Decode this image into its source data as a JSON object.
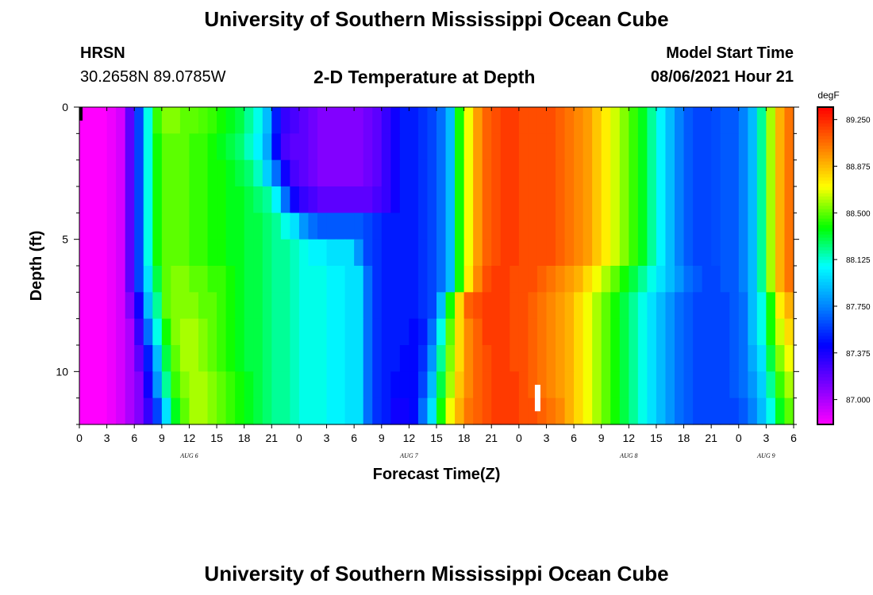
{
  "header": {
    "title": "University of Southern Mississippi Ocean Cube",
    "station_name": "HRSN",
    "station_coords": "30.2658N  89.0785W",
    "chart_title": "2-D Temperature at Depth",
    "start_label": "Model Start Time",
    "start_value": "08/06/2021 Hour 21"
  },
  "footer": {
    "title": "University of Southern Mississippi Ocean Cube"
  },
  "chart_data": {
    "type": "heatmap",
    "title": "2-D Temperature at Depth",
    "xlabel": "Forecast Time(Z)",
    "ylabel": "Depth (ft)",
    "x_ticks": [
      "0",
      "3",
      "6",
      "9",
      "12",
      "15",
      "18",
      "21",
      "0",
      "3",
      "6",
      "9",
      "12",
      "15",
      "18",
      "21",
      "0",
      "3",
      "6",
      "9",
      "12",
      "15",
      "18",
      "21",
      "0",
      "3",
      "6"
    ],
    "x_range_hours": [
      0,
      78
    ],
    "date_labels": [
      {
        "label": "AUG  6",
        "hour": 12
      },
      {
        "label": "AUG  7",
        "hour": 36
      },
      {
        "label": "AUG  8",
        "hour": 60
      },
      {
        "label": "AUG  9",
        "hour": 75
      }
    ],
    "y_range": [
      0,
      12
    ],
    "y_ticks": [
      0,
      5,
      10
    ],
    "y_minor_step": 1,
    "hours": [
      0,
      1,
      2,
      3,
      4,
      5,
      6,
      7,
      8,
      9,
      10,
      11,
      12,
      13,
      14,
      15,
      16,
      17,
      18,
      19,
      20,
      21,
      22,
      23,
      24,
      25,
      26,
      27,
      28,
      29,
      30,
      31,
      32,
      33,
      34,
      35,
      36,
      37,
      38,
      39,
      40,
      41,
      42,
      43,
      44,
      45,
      46,
      47,
      48,
      49,
      50,
      51,
      52,
      53,
      54,
      55,
      56,
      57,
      58,
      59,
      60,
      61,
      62,
      63,
      64,
      65,
      66,
      67,
      68,
      69,
      70,
      71,
      72,
      73,
      74,
      75,
      76,
      77
    ],
    "depths": [
      0,
      1,
      2,
      3,
      4,
      5,
      6,
      7,
      8,
      9,
      10,
      11
    ],
    "values": [
      [
        86.8,
        86.8,
        86.8,
        86.84,
        86.9,
        87.2,
        87.6,
        88.1,
        88.45,
        88.55,
        88.55,
        88.5,
        88.5,
        88.48,
        88.45,
        88.4,
        88.35,
        88.3,
        88.2,
        88.1,
        87.9,
        87.5,
        87.3,
        87.25,
        87.2,
        87.15,
        87.1,
        87.1,
        87.1,
        87.1,
        87.1,
        87.15,
        87.2,
        87.3,
        87.4,
        87.5,
        87.5,
        87.55,
        87.6,
        87.7,
        87.9,
        88.4,
        88.7,
        88.95,
        89.1,
        89.15,
        89.2,
        89.2,
        89.15,
        89.15,
        89.15,
        89.15,
        89.1,
        89.05,
        89.0,
        88.95,
        88.85,
        88.75,
        88.65,
        88.55,
        88.45,
        88.35,
        88.2,
        88.05,
        87.9,
        87.75,
        87.65,
        87.6,
        87.6,
        87.62,
        87.65,
        87.65,
        87.75,
        87.9,
        88.2,
        88.6,
        88.9,
        89.05
      ],
      [
        86.8,
        86.8,
        86.8,
        86.84,
        86.9,
        87.2,
        87.6,
        88.1,
        88.4,
        88.5,
        88.5,
        88.5,
        88.45,
        88.45,
        88.4,
        88.35,
        88.3,
        88.25,
        88.15,
        88.05,
        87.85,
        87.45,
        87.25,
        87.2,
        87.2,
        87.15,
        87.1,
        87.1,
        87.1,
        87.1,
        87.1,
        87.15,
        87.2,
        87.3,
        87.4,
        87.5,
        87.5,
        87.55,
        87.6,
        87.7,
        87.9,
        88.4,
        88.7,
        88.95,
        89.1,
        89.15,
        89.2,
        89.2,
        89.15,
        89.15,
        89.15,
        89.15,
        89.1,
        89.05,
        89.0,
        88.95,
        88.85,
        88.75,
        88.65,
        88.55,
        88.45,
        88.35,
        88.2,
        88.05,
        87.9,
        87.75,
        87.65,
        87.6,
        87.6,
        87.62,
        87.65,
        87.65,
        87.75,
        87.9,
        88.2,
        88.6,
        88.9,
        89.05
      ],
      [
        86.8,
        86.8,
        86.8,
        86.84,
        86.9,
        87.2,
        87.6,
        88.1,
        88.4,
        88.5,
        88.5,
        88.5,
        88.45,
        88.45,
        88.4,
        88.4,
        88.35,
        88.3,
        88.25,
        88.15,
        87.95,
        87.7,
        87.4,
        87.25,
        87.2,
        87.15,
        87.1,
        87.1,
        87.1,
        87.1,
        87.1,
        87.15,
        87.2,
        87.3,
        87.4,
        87.5,
        87.5,
        87.55,
        87.6,
        87.7,
        87.9,
        88.4,
        88.7,
        88.95,
        89.1,
        89.15,
        89.2,
        89.2,
        89.15,
        89.15,
        89.15,
        89.15,
        89.1,
        89.05,
        89.0,
        88.95,
        88.85,
        88.75,
        88.65,
        88.55,
        88.45,
        88.35,
        88.2,
        88.05,
        87.9,
        87.75,
        87.65,
        87.6,
        87.6,
        87.62,
        87.65,
        87.65,
        87.75,
        87.9,
        88.2,
        88.6,
        88.9,
        89.05
      ],
      [
        86.8,
        86.8,
        86.8,
        86.84,
        86.9,
        87.2,
        87.6,
        88.1,
        88.4,
        88.5,
        88.5,
        88.5,
        88.45,
        88.45,
        88.4,
        88.4,
        88.35,
        88.35,
        88.3,
        88.25,
        88.2,
        88.05,
        87.7,
        87.4,
        87.3,
        87.25,
        87.2,
        87.2,
        87.2,
        87.2,
        87.2,
        87.2,
        87.25,
        87.3,
        87.4,
        87.5,
        87.5,
        87.55,
        87.6,
        87.7,
        87.9,
        88.4,
        88.7,
        88.95,
        89.1,
        89.15,
        89.2,
        89.2,
        89.15,
        89.15,
        89.15,
        89.15,
        89.1,
        89.05,
        89.0,
        88.95,
        88.85,
        88.75,
        88.65,
        88.55,
        88.45,
        88.35,
        88.2,
        88.05,
        87.9,
        87.75,
        87.65,
        87.6,
        87.6,
        87.62,
        87.65,
        87.65,
        87.75,
        87.9,
        88.2,
        88.6,
        88.9,
        89.05
      ],
      [
        86.8,
        86.8,
        86.8,
        86.84,
        86.9,
        87.2,
        87.6,
        88.1,
        88.4,
        88.5,
        88.5,
        88.5,
        88.45,
        88.45,
        88.4,
        88.4,
        88.35,
        88.35,
        88.3,
        88.3,
        88.25,
        88.2,
        88.1,
        88.0,
        87.8,
        87.7,
        87.65,
        87.65,
        87.65,
        87.65,
        87.65,
        87.6,
        87.55,
        87.5,
        87.5,
        87.5,
        87.5,
        87.55,
        87.6,
        87.7,
        87.9,
        88.4,
        88.7,
        88.95,
        89.1,
        89.15,
        89.2,
        89.2,
        89.15,
        89.15,
        89.15,
        89.15,
        89.1,
        89.05,
        89.0,
        88.95,
        88.85,
        88.75,
        88.65,
        88.55,
        88.45,
        88.35,
        88.2,
        88.05,
        87.9,
        87.75,
        87.65,
        87.6,
        87.6,
        87.62,
        87.65,
        87.65,
        87.75,
        87.9,
        88.2,
        88.6,
        88.9,
        89.05
      ],
      [
        86.8,
        86.8,
        86.8,
        86.84,
        86.9,
        87.2,
        87.6,
        88.1,
        88.4,
        88.5,
        88.5,
        88.5,
        88.45,
        88.45,
        88.4,
        88.4,
        88.35,
        88.35,
        88.3,
        88.3,
        88.25,
        88.2,
        88.2,
        88.15,
        88.1,
        88.05,
        88.05,
        88.0,
        88.0,
        88.0,
        87.8,
        87.6,
        87.55,
        87.5,
        87.5,
        87.5,
        87.5,
        87.55,
        87.6,
        87.7,
        87.9,
        88.4,
        88.7,
        88.95,
        89.1,
        89.15,
        89.2,
        89.2,
        89.15,
        89.15,
        89.15,
        89.15,
        89.1,
        89.05,
        89.0,
        88.95,
        88.85,
        88.75,
        88.65,
        88.55,
        88.45,
        88.35,
        88.2,
        88.05,
        87.9,
        87.75,
        87.65,
        87.6,
        87.6,
        87.62,
        87.65,
        87.65,
        87.75,
        87.9,
        88.2,
        88.6,
        88.9,
        89.05
      ],
      [
        86.8,
        86.8,
        86.8,
        86.84,
        86.9,
        87.2,
        87.6,
        88.0,
        88.3,
        88.5,
        88.55,
        88.55,
        88.5,
        88.5,
        88.45,
        88.45,
        88.4,
        88.35,
        88.3,
        88.3,
        88.25,
        88.2,
        88.2,
        88.15,
        88.1,
        88.1,
        88.1,
        88.05,
        88.05,
        88.0,
        88.0,
        87.7,
        87.55,
        87.5,
        87.5,
        87.5,
        87.5,
        87.55,
        87.6,
        87.7,
        87.9,
        88.4,
        88.75,
        89.0,
        89.15,
        89.2,
        89.2,
        89.15,
        89.15,
        89.15,
        89.1,
        89.05,
        89.0,
        88.95,
        88.9,
        88.8,
        88.7,
        88.6,
        88.5,
        88.4,
        88.3,
        88.2,
        88.1,
        88.0,
        87.9,
        87.8,
        87.7,
        87.65,
        87.6,
        87.6,
        87.65,
        87.65,
        87.75,
        87.9,
        88.2,
        88.6,
        88.9,
        89.05
      ],
      [
        86.8,
        86.8,
        86.8,
        86.84,
        86.9,
        87.1,
        87.4,
        87.9,
        88.2,
        88.5,
        88.55,
        88.55,
        88.55,
        88.5,
        88.5,
        88.45,
        88.4,
        88.35,
        88.3,
        88.3,
        88.25,
        88.2,
        88.2,
        88.15,
        88.1,
        88.1,
        88.1,
        88.05,
        88.05,
        88.0,
        88.0,
        87.7,
        87.55,
        87.5,
        87.5,
        87.5,
        87.5,
        87.55,
        87.6,
        87.9,
        88.4,
        88.8,
        89.1,
        89.15,
        89.2,
        89.2,
        89.2,
        89.15,
        89.15,
        89.1,
        89.05,
        89.0,
        88.95,
        88.9,
        88.8,
        88.7,
        88.6,
        88.5,
        88.4,
        88.3,
        88.2,
        88.1,
        88.0,
        87.9,
        87.8,
        87.7,
        87.65,
        87.6,
        87.6,
        87.6,
        87.6,
        87.65,
        87.7,
        87.9,
        88.1,
        88.4,
        88.75,
        88.9
      ],
      [
        86.8,
        86.8,
        86.8,
        86.84,
        86.9,
        87.0,
        87.3,
        87.7,
        88.1,
        88.4,
        88.55,
        88.6,
        88.6,
        88.55,
        88.5,
        88.45,
        88.4,
        88.35,
        88.3,
        88.3,
        88.25,
        88.2,
        88.2,
        88.15,
        88.1,
        88.1,
        88.1,
        88.05,
        88.05,
        88.0,
        88.0,
        87.7,
        87.55,
        87.5,
        87.5,
        87.5,
        87.45,
        87.5,
        87.7,
        88.1,
        88.5,
        88.8,
        89.0,
        89.1,
        89.2,
        89.2,
        89.2,
        89.15,
        89.15,
        89.1,
        89.05,
        89.0,
        88.95,
        88.9,
        88.8,
        88.7,
        88.6,
        88.5,
        88.4,
        88.3,
        88.2,
        88.1,
        88.0,
        87.9,
        87.8,
        87.7,
        87.65,
        87.6,
        87.6,
        87.6,
        87.6,
        87.65,
        87.7,
        87.9,
        88.1,
        88.4,
        88.65,
        88.8
      ],
      [
        86.8,
        86.8,
        86.8,
        86.84,
        86.9,
        87.0,
        87.2,
        87.5,
        87.9,
        88.3,
        88.5,
        88.6,
        88.6,
        88.55,
        88.5,
        88.45,
        88.4,
        88.35,
        88.3,
        88.3,
        88.25,
        88.2,
        88.2,
        88.15,
        88.1,
        88.1,
        88.1,
        88.05,
        88.05,
        88.0,
        88.0,
        87.7,
        87.55,
        87.5,
        87.5,
        87.45,
        87.45,
        87.55,
        87.8,
        88.2,
        88.55,
        88.8,
        89.0,
        89.1,
        89.15,
        89.2,
        89.2,
        89.15,
        89.15,
        89.1,
        89.05,
        89.0,
        88.95,
        88.9,
        88.8,
        88.7,
        88.6,
        88.5,
        88.4,
        88.3,
        88.2,
        88.1,
        88.0,
        87.9,
        87.8,
        87.7,
        87.65,
        87.6,
        87.6,
        87.6,
        87.6,
        87.65,
        87.7,
        87.85,
        88.0,
        88.3,
        88.55,
        88.7
      ],
      [
        86.8,
        86.8,
        86.8,
        86.84,
        86.9,
        87.0,
        87.1,
        87.4,
        87.8,
        88.2,
        88.45,
        88.55,
        88.6,
        88.6,
        88.55,
        88.5,
        88.45,
        88.4,
        88.35,
        88.3,
        88.25,
        88.2,
        88.2,
        88.15,
        88.1,
        88.1,
        88.1,
        88.05,
        88.05,
        88.0,
        88.0,
        87.7,
        87.55,
        87.5,
        87.45,
        87.45,
        87.45,
        87.6,
        87.9,
        88.3,
        88.6,
        88.85,
        89.0,
        89.1,
        89.15,
        89.2,
        89.2,
        89.2,
        89.15,
        89.1,
        89.05,
        89.0,
        88.95,
        88.9,
        88.8,
        88.7,
        88.6,
        88.5,
        88.4,
        88.3,
        88.2,
        88.1,
        88.0,
        87.9,
        87.8,
        87.7,
        87.65,
        87.6,
        87.6,
        87.6,
        87.6,
        87.65,
        87.7,
        87.8,
        87.95,
        88.2,
        88.45,
        88.6
      ],
      [
        86.8,
        86.8,
        86.8,
        86.84,
        86.9,
        87.0,
        87.1,
        87.3,
        87.6,
        88.0,
        88.35,
        88.5,
        88.6,
        88.6,
        88.55,
        88.5,
        88.45,
        88.4,
        88.35,
        88.3,
        88.25,
        88.2,
        88.2,
        88.15,
        88.1,
        88.1,
        88.1,
        88.05,
        88.05,
        88.0,
        88.0,
        87.7,
        87.55,
        87.5,
        87.4,
        87.4,
        87.45,
        87.7,
        88.0,
        88.4,
        88.7,
        88.9,
        89.05,
        89.1,
        89.15,
        89.2,
        89.2,
        89.2,
        89.15,
        89.15,
        89.1,
        89.05,
        89.0,
        88.9,
        88.8,
        88.7,
        88.6,
        88.5,
        88.4,
        88.3,
        88.2,
        88.1,
        88.0,
        87.9,
        87.8,
        87.7,
        87.65,
        87.6,
        87.6,
        87.6,
        87.6,
        87.6,
        87.65,
        87.75,
        87.9,
        88.1,
        88.35,
        88.5
      ]
    ],
    "colorbar": {
      "unit": "degF",
      "min": 86.8,
      "max": 89.35,
      "tick_values": [
        87.0,
        87.375,
        87.75,
        88.125,
        88.5,
        88.875,
        89.25
      ],
      "tick_labels": [
        "87.000",
        "87.375",
        "87.750",
        "88.125",
        "88.500",
        "88.875",
        "89.250"
      ]
    },
    "current_time_marker": {
      "hour": 50,
      "depth_from": 10.5,
      "depth_to": 11.5
    }
  }
}
